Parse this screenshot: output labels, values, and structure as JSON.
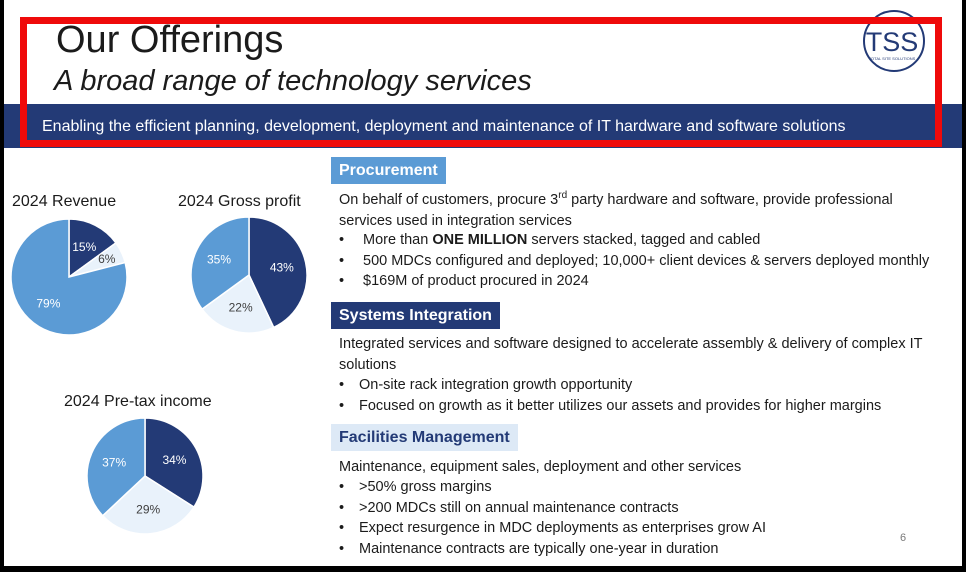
{
  "header": {
    "title": "Our Offerings",
    "subtitle": "A broad range of technology services",
    "logo_text": "TSS",
    "logo_subtext": "TOTAL SITE SOLUTIONS"
  },
  "banner": {
    "text": "Enabling the efficient planning, development, deployment and maintenance of IT hardware and software solutions"
  },
  "colors": {
    "navy": "#233a76",
    "blue": "#5b9bd5",
    "light": "#e9f2fb",
    "highlight": "#ef0a0a"
  },
  "chart_data": [
    {
      "type": "pie",
      "title": "2024 Revenue",
      "slices": [
        {
          "label": "15%",
          "value": 15,
          "color": "#233a76",
          "text_color": "#ffffff"
        },
        {
          "label": "6%",
          "value": 6,
          "color": "#e9f2fb",
          "text_color": "#404040"
        },
        {
          "label": "79%",
          "value": 79,
          "color": "#5b9bd5",
          "text_color": "#ffffff"
        }
      ]
    },
    {
      "type": "pie",
      "title": "2024 Gross profit",
      "slices": [
        {
          "label": "43%",
          "value": 43,
          "color": "#233a76",
          "text_color": "#ffffff"
        },
        {
          "label": "22%",
          "value": 22,
          "color": "#e9f2fb",
          "text_color": "#404040"
        },
        {
          "label": "35%",
          "value": 35,
          "color": "#5b9bd5",
          "text_color": "#ffffff"
        }
      ]
    },
    {
      "type": "pie",
      "title": "2024 Pre-tax income",
      "slices": [
        {
          "label": "34%",
          "value": 34,
          "color": "#233a76",
          "text_color": "#ffffff"
        },
        {
          "label": "29%",
          "value": 29,
          "color": "#e9f2fb",
          "text_color": "#404040"
        },
        {
          "label": "37%",
          "value": 37,
          "color": "#5b9bd5",
          "text_color": "#ffffff"
        }
      ]
    }
  ],
  "sections": {
    "procurement": {
      "heading": "Procurement",
      "desc_before": "On behalf of customers, procure 3",
      "desc_sup": "rd",
      "desc_after": " party hardware and software, provide professional services used in integration services",
      "b1_bold": "ONE MILLION",
      "b1_before": "More than ",
      "b1_after": " servers stacked, tagged and cabled",
      "b2": "500 MDCs configured and deployed; 10,000+ client devices & servers deployed monthly",
      "b3": "$169M of product procured in 2024"
    },
    "systems": {
      "heading": "Systems Integration",
      "desc": "Integrated services and software designed to accelerate assembly & delivery of complex IT solutions",
      "b1": "On-site rack integration growth opportunity",
      "b2": "Focused on growth as it better utilizes our assets and provides for higher margins"
    },
    "facilities": {
      "heading": "Facilities Management",
      "desc": "Maintenance, equipment sales, deployment and other services",
      "b1": ">50% gross margins",
      "b2": ">200 MDCs still on annual maintenance contracts",
      "b3": "Expect resurgence in MDC deployments as enterprises grow AI",
      "b4": "Maintenance contracts are typically one-year in duration"
    }
  },
  "footer": {
    "page_number": "6"
  }
}
